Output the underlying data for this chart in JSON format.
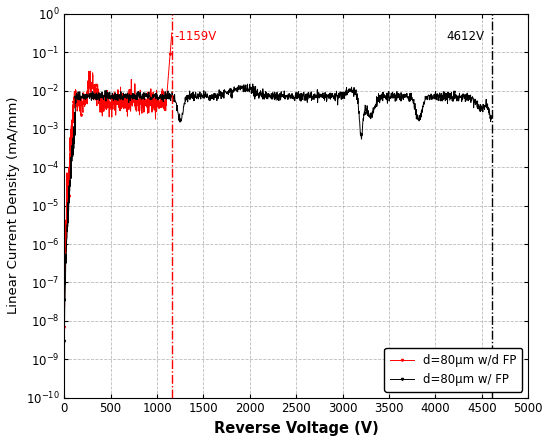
{
  "title": "",
  "xlabel": "Reverse Voltage (V)",
  "ylabel": "Linear Current Density (mA/mm)",
  "xlim": [
    0,
    5000
  ],
  "ylim_log": [
    -10,
    0
  ],
  "xticks": [
    0,
    500,
    1000,
    1500,
    2000,
    2500,
    3000,
    3500,
    4000,
    4500,
    5000
  ],
  "vline_red": 1159,
  "vline_black": 4612,
  "vline_red_label": "-1159V",
  "vline_black_label": "4612V",
  "legend": [
    "d=80μm w/d FP",
    "d=80μm w/ FP"
  ],
  "red_color": "#ff0000",
  "black_color": "#000000",
  "bg_color": "#ffffff",
  "grid_color": "#aaaaaa",
  "figsize": [
    5.5,
    4.43
  ],
  "dpi": 100
}
